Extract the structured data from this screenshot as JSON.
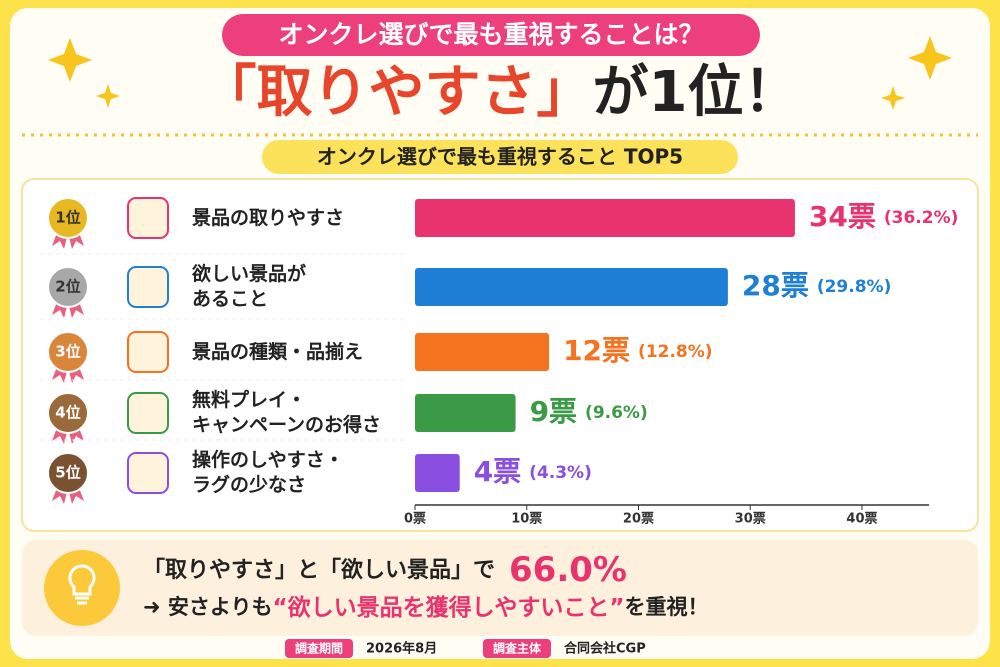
{
  "header": {
    "banner": "オンクレ選びで最も重視することは？",
    "headline_highlight": "「取りやすさ」",
    "headline_rest": "が1位！"
  },
  "chart_data": {
    "type": "bar",
    "orientation": "horizontal",
    "title": "オンクレ選びで最も重視すること TOP5",
    "ranks": [
      "1位",
      "2位",
      "3位",
      "4位",
      "5位"
    ],
    "categories": [
      "景品の取りやすさ",
      "欲しい景品が\nあること",
      "景品の種類・品揃え",
      "無料プレイ・\nキャンペーンのお得さ",
      "操作のしやすさ・\nラグの少なさ"
    ],
    "values": [
      34,
      28,
      12,
      9,
      4
    ],
    "value_labels": [
      "34票",
      "28票",
      "12票",
      "9票",
      "4票"
    ],
    "share_labels": [
      "(36.2%)",
      "(29.8%)",
      "(12.8%)",
      "(9.6%)",
      "(4.3%)"
    ],
    "colors": [
      "#e8336f",
      "#1f7fd6",
      "#f5731e",
      "#3a9a45",
      "#8a4fe0"
    ],
    "xlim": [
      0,
      46
    ],
    "xticks": [
      {
        "value": 0,
        "label": "0票"
      },
      {
        "value": 10,
        "label": "10票"
      },
      {
        "value": 20,
        "label": "20票"
      },
      {
        "value": 30,
        "label": "30票"
      },
      {
        "value": 40,
        "label": "40票"
      }
    ]
  },
  "summary": {
    "line1": "「取りやすさ」と「欲しい景品」で",
    "highlight": "66.0%",
    "line2_start": "➜ 安さよりも",
    "line2_quote": "“欲しい景品を獲得しやすいこと”",
    "line2_end": "を重視！"
  },
  "footer": {
    "period_label": "調査期間",
    "period": "2026年8月",
    "org_label": "調査主体",
    "org": "合同会社CGP"
  }
}
